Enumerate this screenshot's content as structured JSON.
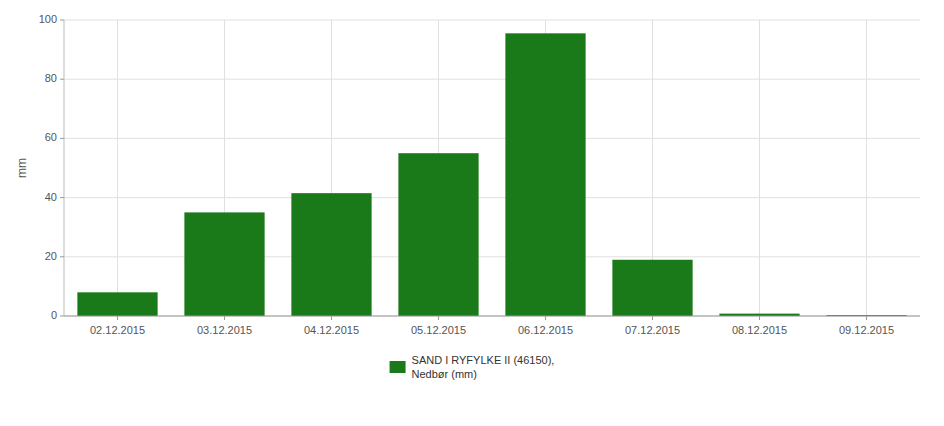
{
  "chart_data": {
    "type": "bar",
    "categories": [
      "02.12.2015",
      "03.12.2015",
      "04.12.2015",
      "05.12.2015",
      "06.12.2015",
      "07.12.2015",
      "08.12.2015",
      "09.12.2015"
    ],
    "series": [
      {
        "name": "SAND I RYFYLKE II (46150),\nNedbør (mm)",
        "color": "#1a7a1a",
        "values": [
          8.0,
          35.0,
          41.5,
          55.0,
          95.5,
          19.0,
          0.8,
          0.3
        ]
      }
    ],
    "y_label": "mm",
    "ylim": [
      0,
      100
    ],
    "yticks": [
      0,
      20,
      40,
      60,
      80,
      100
    ],
    "grid": true,
    "legend": "bottom"
  }
}
